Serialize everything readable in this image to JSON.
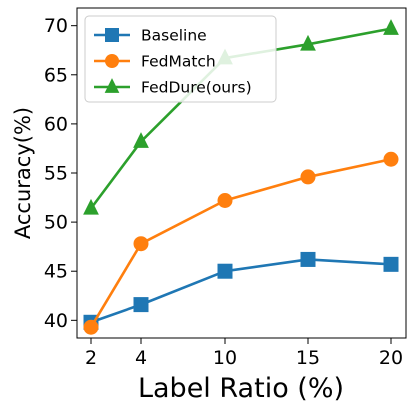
{
  "chart_data": {
    "type": "line",
    "title": "",
    "xlabel": "Label Ratio (%)",
    "ylabel": "Accuracy(%)",
    "x": [
      2,
      4,
      10,
      15,
      20
    ],
    "x_ticks": [
      2,
      4,
      10,
      15,
      20
    ],
    "x_tick_labels": [
      "2",
      "4",
      "10",
      "15",
      "20"
    ],
    "x_scale": "categorical-evenly-spaced-with-offset",
    "y_ticks": [
      40,
      45,
      50,
      55,
      60,
      65,
      70
    ],
    "y_tick_labels": [
      "40",
      "45",
      "50",
      "55",
      "60",
      "65",
      "70"
    ],
    "ylim": [
      38.2,
      71.8
    ],
    "grid": false,
    "legend_position": "top-left",
    "series": [
      {
        "name": "Baseline",
        "color": "#1f77b4",
        "marker": "square",
        "values": [
          39.8,
          41.6,
          45.0,
          46.2,
          45.7
        ]
      },
      {
        "name": "FedMatch",
        "color": "#ff7f0e",
        "marker": "circle",
        "values": [
          39.3,
          47.8,
          52.2,
          54.6,
          56.4
        ]
      },
      {
        "name": "FedDure(ours)",
        "color": "#2ca02c",
        "marker": "triangle",
        "values": [
          51.4,
          58.2,
          66.7,
          68.1,
          69.7
        ]
      }
    ]
  }
}
